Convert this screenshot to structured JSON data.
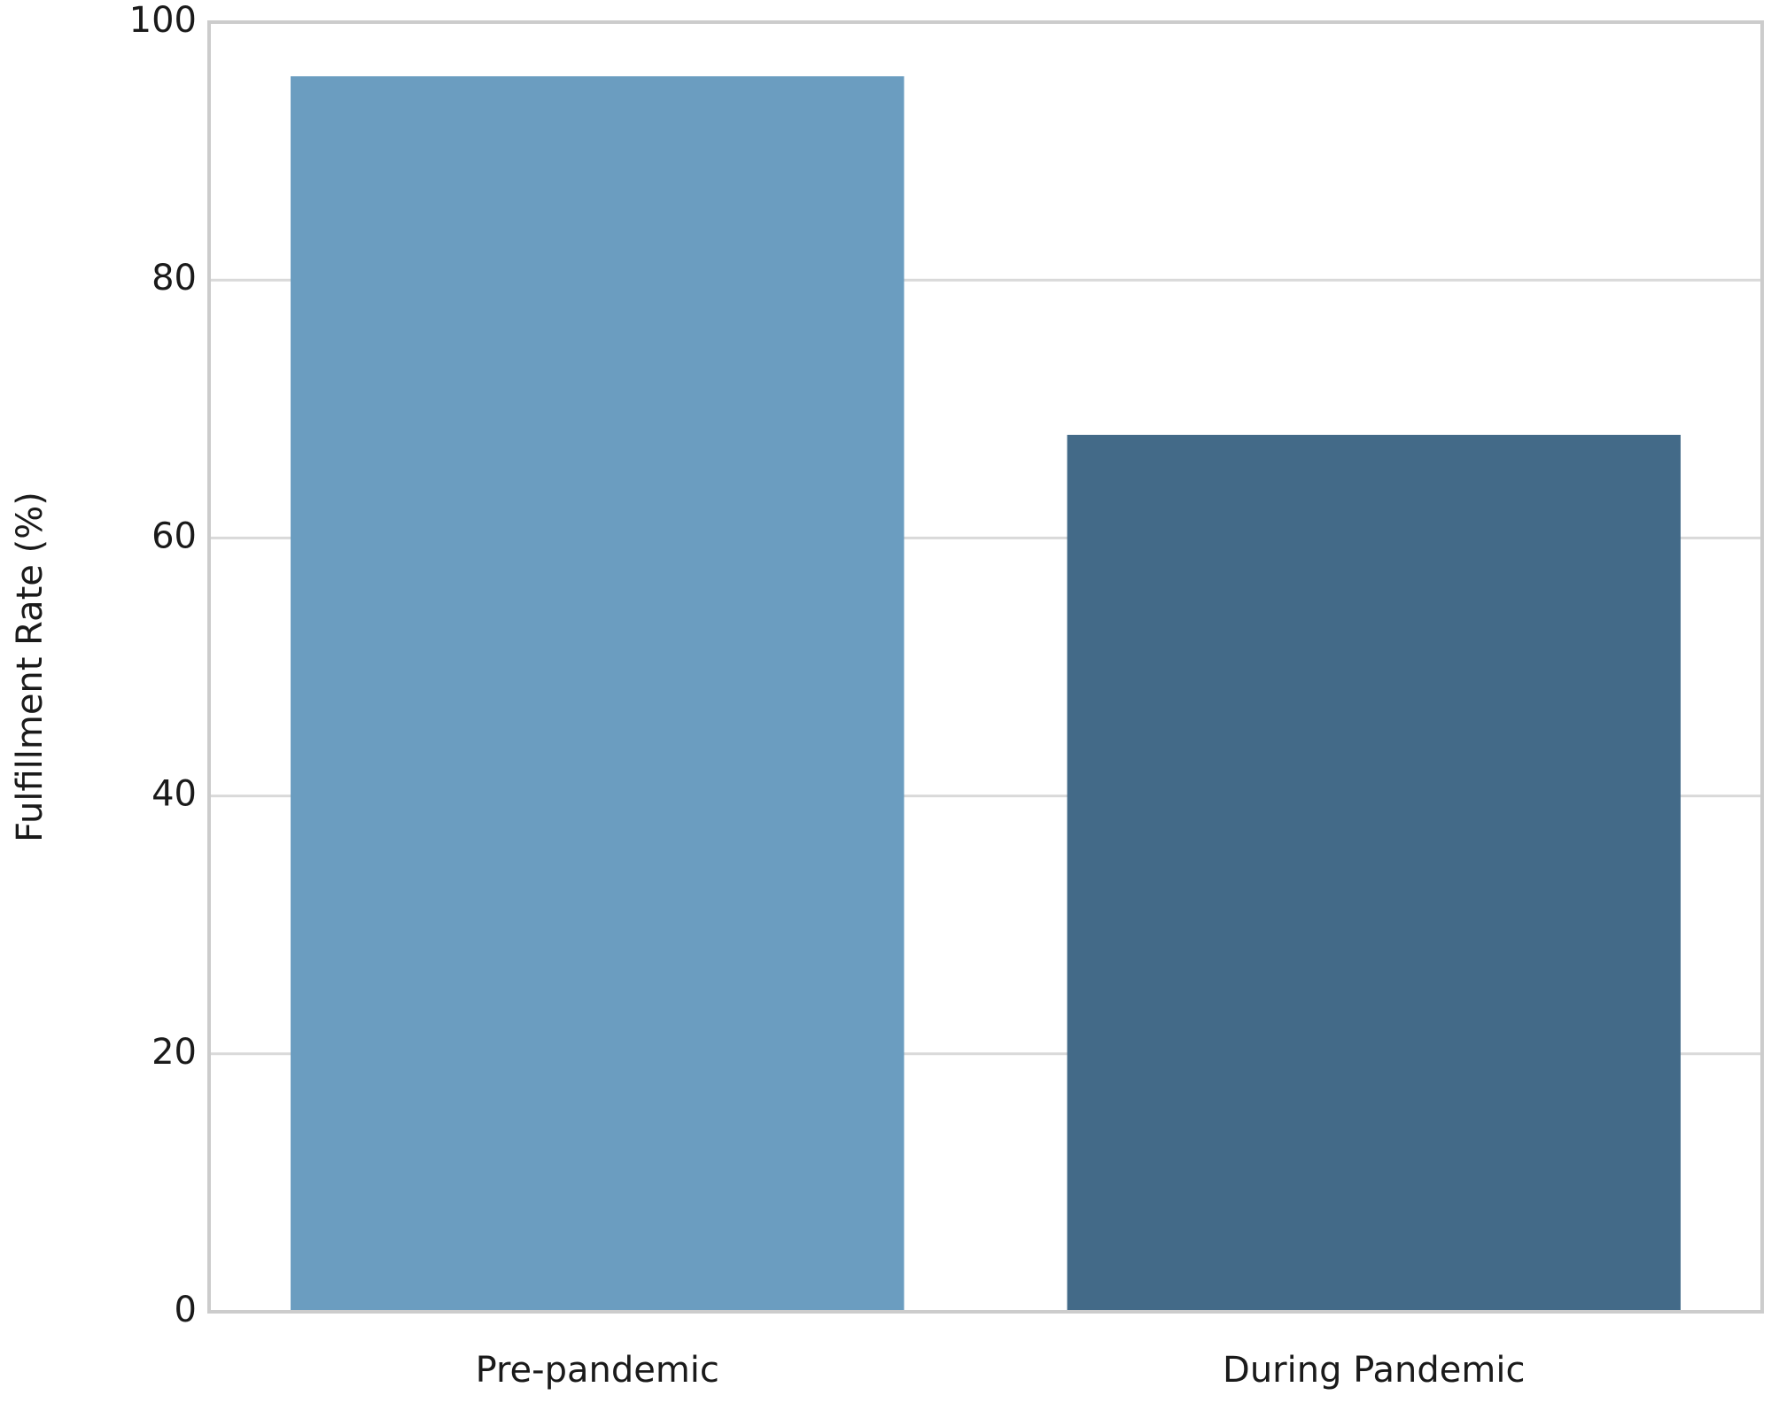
{
  "chart_data": {
    "type": "bar",
    "ylabel": "Fulfillment Rate (%)",
    "categories": [
      "Pre-pandemic",
      "During Pandemic"
    ],
    "values": [
      95.8,
      68
    ],
    "colors": [
      "#6b9dc0",
      "#436a88"
    ],
    "ylim": [
      0,
      100
    ],
    "yticks": [
      0,
      20,
      40,
      60,
      80,
      100
    ],
    "grid": true
  }
}
